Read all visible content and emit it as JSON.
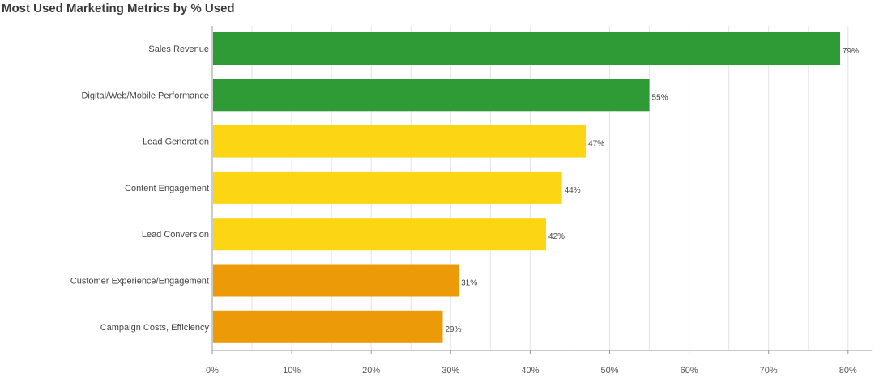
{
  "chart_data": {
    "type": "bar",
    "orientation": "horizontal",
    "title": "Most Used Marketing Metrics by % Used",
    "categories": [
      "Sales Revenue",
      "Digital/Web/Mobile Performance",
      "Lead Generation",
      "Content Engagement",
      "Lead Conversion",
      "Customer Experience/Engagement",
      "Campaign Costs, Efficiency"
    ],
    "values": [
      79,
      55,
      47,
      44,
      42,
      31,
      29
    ],
    "value_labels": [
      "79%",
      "55%",
      "47%",
      "44%",
      "42%",
      "31%",
      "29%"
    ],
    "bar_colors": [
      "#2e9b36",
      "#2e9b36",
      "#fcd614",
      "#fcd614",
      "#fcd614",
      "#ed9a08",
      "#ed9a08"
    ],
    "x_ticks": [
      0,
      10,
      20,
      30,
      40,
      50,
      60,
      70,
      80
    ],
    "x_tick_labels": [
      "0%",
      "10%",
      "20%",
      "30%",
      "40%",
      "50%",
      "60%",
      "70%",
      "80%"
    ],
    "xlim": [
      0,
      83
    ],
    "xlabel": "",
    "ylabel": "",
    "grid": true,
    "grid_color": "#e3e3e3",
    "axis_color": "#9a9a9a"
  }
}
